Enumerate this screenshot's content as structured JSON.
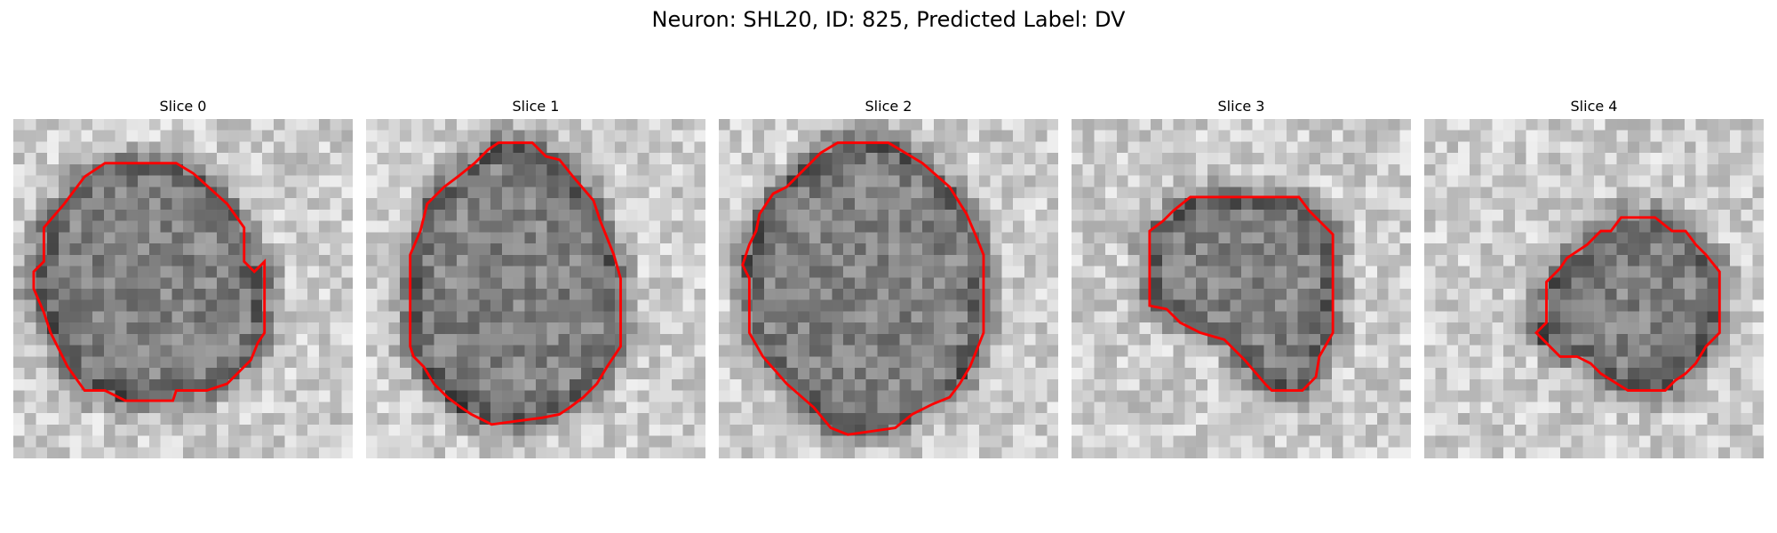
{
  "figure": {
    "title": "Neuron: SHL20, ID: 825, Predicted Label: DV"
  },
  "slices": [
    {
      "title": "Slice 0"
    },
    {
      "title": "Slice 1"
    },
    {
      "title": "Slice 2"
    },
    {
      "title": "Slice 3"
    },
    {
      "title": "Slice 4"
    }
  ],
  "colors": {
    "contour": "#ff0000",
    "background": "#ffffff"
  }
}
